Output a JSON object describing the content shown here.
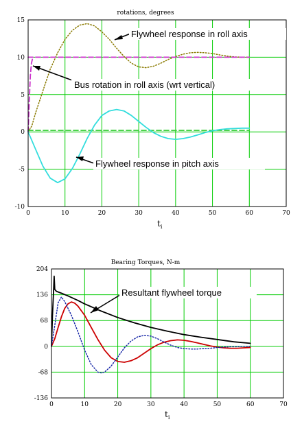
{
  "colors": {
    "grid": "#00cc00",
    "frame": "#000000",
    "callout_bg": "#ffffff",
    "roll_flywheel": "#8a7a00",
    "bus_rotation": "#cc33cc",
    "pitch_flywheel": "#33dddd",
    "green_dash": "#33cc33",
    "resultant": "#000000",
    "red_torque": "#cc0000",
    "blue_torque": "#1a2aa8"
  },
  "chart_data": [
    {
      "type": "line",
      "title": "rotations, degrees",
      "xlabel": "t",
      "xlabel_sub": "i",
      "ylabel": "",
      "xlim": [
        0,
        70
      ],
      "ylim": [
        -10,
        15
      ],
      "x_ticks": [
        "0",
        "10",
        "20",
        "30",
        "40",
        "50",
        "60",
        "70"
      ],
      "y_ticks": [
        "15",
        "10",
        "5",
        "0",
        "-5",
        "-10"
      ],
      "x_tick_values": [
        0,
        10,
        20,
        30,
        40,
        50,
        60,
        70
      ],
      "y_tick_values": [
        15,
        10,
        5,
        0,
        -5,
        -10
      ],
      "grid": true,
      "annotations": [
        "Flywheel response in roll axis",
        "Bus rotation in roll axis (wrt vertical)",
        "Flywheel response in pitch axis"
      ],
      "series": [
        {
          "id": "flywheel-roll",
          "style": "dotted",
          "color": "#8a7a00",
          "points": [
            [
              0,
              0
            ],
            [
              1,
              0.8
            ],
            [
              2,
              2.5
            ],
            [
              4,
              5.5
            ],
            [
              6,
              8.4
            ],
            [
              8,
              10.6
            ],
            [
              10,
              12.4
            ],
            [
              12,
              13.6
            ],
            [
              14,
              14.3
            ],
            [
              16,
              14.5
            ],
            [
              18,
              14.2
            ],
            [
              20,
              13.4
            ],
            [
              22,
              12.4
            ],
            [
              24,
              11.2
            ],
            [
              26,
              10.1
            ],
            [
              28,
              9.2
            ],
            [
              30,
              8.7
            ],
            [
              32,
              8.6
            ],
            [
              34,
              8.8
            ],
            [
              36,
              9.2
            ],
            [
              38,
              9.7
            ],
            [
              40,
              10.1
            ],
            [
              42,
              10.4
            ],
            [
              44,
              10.6
            ],
            [
              46,
              10.65
            ],
            [
              48,
              10.6
            ],
            [
              50,
              10.5
            ],
            [
              52,
              10.3
            ],
            [
              54,
              10.15
            ],
            [
              56,
              10.05
            ],
            [
              58,
              10.0
            ],
            [
              60,
              10.0
            ]
          ]
        },
        {
          "id": "roll-pink-dash",
          "style": "dashed",
          "color": "#cc33cc",
          "points": [
            [
              0,
              10
            ],
            [
              60,
              10
            ]
          ]
        },
        {
          "id": "bus-rotation",
          "style": "dashed",
          "color": "#cc33cc",
          "points": [
            [
              0,
              0
            ],
            [
              0.3,
              4
            ],
            [
              0.6,
              7.5
            ],
            [
              0.9,
              9.2
            ],
            [
              1.2,
              9.8
            ],
            [
              1.5,
              10
            ]
          ]
        },
        {
          "id": "green-dash",
          "style": "dashed",
          "color": "#33cc33",
          "points": [
            [
              0,
              0.2
            ],
            [
              60,
              0.2
            ]
          ]
        },
        {
          "id": "flywheel-pitch",
          "style": "solid",
          "color": "#33dddd",
          "points": [
            [
              0,
              0
            ],
            [
              2,
              -2.3
            ],
            [
              4,
              -4.6
            ],
            [
              6,
              -6.2
            ],
            [
              8,
              -6.8
            ],
            [
              10,
              -6.3
            ],
            [
              12,
              -4.9
            ],
            [
              14,
              -3.0
            ],
            [
              16,
              -0.9
            ],
            [
              18,
              0.9
            ],
            [
              20,
              2.2
            ],
            [
              22,
              2.8
            ],
            [
              24,
              3.0
            ],
            [
              26,
              2.8
            ],
            [
              28,
              2.2
            ],
            [
              30,
              1.4
            ],
            [
              32,
              0.6
            ],
            [
              34,
              -0.1
            ],
            [
              36,
              -0.6
            ],
            [
              38,
              -0.9
            ],
            [
              40,
              -1.0
            ],
            [
              42,
              -0.9
            ],
            [
              44,
              -0.7
            ],
            [
              46,
              -0.4
            ],
            [
              48,
              -0.1
            ],
            [
              50,
              0.15
            ],
            [
              52,
              0.3
            ],
            [
              54,
              0.4
            ],
            [
              56,
              0.45
            ],
            [
              58,
              0.5
            ],
            [
              60,
              0.5
            ]
          ]
        }
      ]
    },
    {
      "type": "line",
      "title": "Bearing Torques, N-m",
      "xlabel": "t",
      "xlabel_sub": "i",
      "ylabel": "",
      "xlim": [
        0,
        70
      ],
      "ylim": [
        -136,
        204
      ],
      "x_ticks": [
        "0",
        "10",
        "20",
        "30",
        "40",
        "50",
        "60",
        "70"
      ],
      "y_ticks": [
        "204",
        "136",
        "68",
        "0",
        "-68",
        "-136"
      ],
      "x_tick_values": [
        0,
        10,
        20,
        30,
        40,
        50,
        60,
        70
      ],
      "y_tick_values": [
        204,
        136,
        68,
        0,
        -68,
        -136
      ],
      "grid": true,
      "annotations": [
        "Resultant flywheel torque"
      ],
      "series": [
        {
          "id": "resultant",
          "style": "solid",
          "color": "#000000",
          "points": [
            [
              0,
              0
            ],
            [
              0.3,
              80
            ],
            [
              0.6,
              140
            ],
            [
              0.8,
              185
            ],
            [
              1.0,
              150
            ],
            [
              1.5,
              145
            ],
            [
              3,
              140
            ],
            [
              5,
              133
            ],
            [
              8,
              121
            ],
            [
              10,
              112
            ],
            [
              15,
              93
            ],
            [
              20,
              76
            ],
            [
              25,
              62
            ],
            [
              30,
              50
            ],
            [
              35,
              40
            ],
            [
              40,
              31
            ],
            [
              45,
              24
            ],
            [
              50,
              18
            ],
            [
              55,
              12
            ],
            [
              60,
              8
            ]
          ]
        },
        {
          "id": "red-torque",
          "style": "solid",
          "color": "#cc0000",
          "points": [
            [
              0,
              0
            ],
            [
              1,
              20
            ],
            [
              2,
              50
            ],
            [
              3,
              78
            ],
            [
              4,
              100
            ],
            [
              5,
              112
            ],
            [
              6,
              117
            ],
            [
              7,
              114
            ],
            [
              8,
              106
            ],
            [
              10,
              82
            ],
            [
              12,
              50
            ],
            [
              14,
              18
            ],
            [
              16,
              -10
            ],
            [
              18,
              -30
            ],
            [
              20,
              -40
            ],
            [
              22,
              -42
            ],
            [
              24,
              -38
            ],
            [
              26,
              -30
            ],
            [
              28,
              -18
            ],
            [
              30,
              -6
            ],
            [
              32,
              4
            ],
            [
              34,
              11
            ],
            [
              36,
              15
            ],
            [
              38,
              17
            ],
            [
              40,
              16
            ],
            [
              42,
              13
            ],
            [
              44,
              9
            ],
            [
              46,
              5
            ],
            [
              48,
              1
            ],
            [
              50,
              -2
            ],
            [
              52,
              -4
            ],
            [
              54,
              -5
            ],
            [
              56,
              -5
            ],
            [
              58,
              -4
            ],
            [
              60,
              -3
            ]
          ]
        },
        {
          "id": "blue-torque",
          "style": "dotted",
          "color": "#1a2aa8",
          "points": [
            [
              0,
              0
            ],
            [
              1,
              55
            ],
            [
              2,
              115
            ],
            [
              3,
              130
            ],
            [
              4,
              118
            ],
            [
              6,
              82
            ],
            [
              8,
              38
            ],
            [
              10,
              -10
            ],
            [
              12,
              -48
            ],
            [
              14,
              -68
            ],
            [
              15,
              -70
            ],
            [
              16,
              -68
            ],
            [
              18,
              -52
            ],
            [
              20,
              -28
            ],
            [
              22,
              -4
            ],
            [
              24,
              14
            ],
            [
              26,
              25
            ],
            [
              28,
              29
            ],
            [
              30,
              27
            ],
            [
              32,
              20
            ],
            [
              34,
              11
            ],
            [
              36,
              3
            ],
            [
              38,
              -3
            ],
            [
              40,
              -6
            ],
            [
              42,
              -7
            ],
            [
              44,
              -7
            ],
            [
              46,
              -6
            ],
            [
              48,
              -5
            ],
            [
              50,
              -3
            ],
            [
              52,
              -2
            ],
            [
              54,
              -1
            ],
            [
              56,
              -1
            ],
            [
              58,
              0
            ],
            [
              60,
              0
            ]
          ]
        }
      ]
    }
  ]
}
